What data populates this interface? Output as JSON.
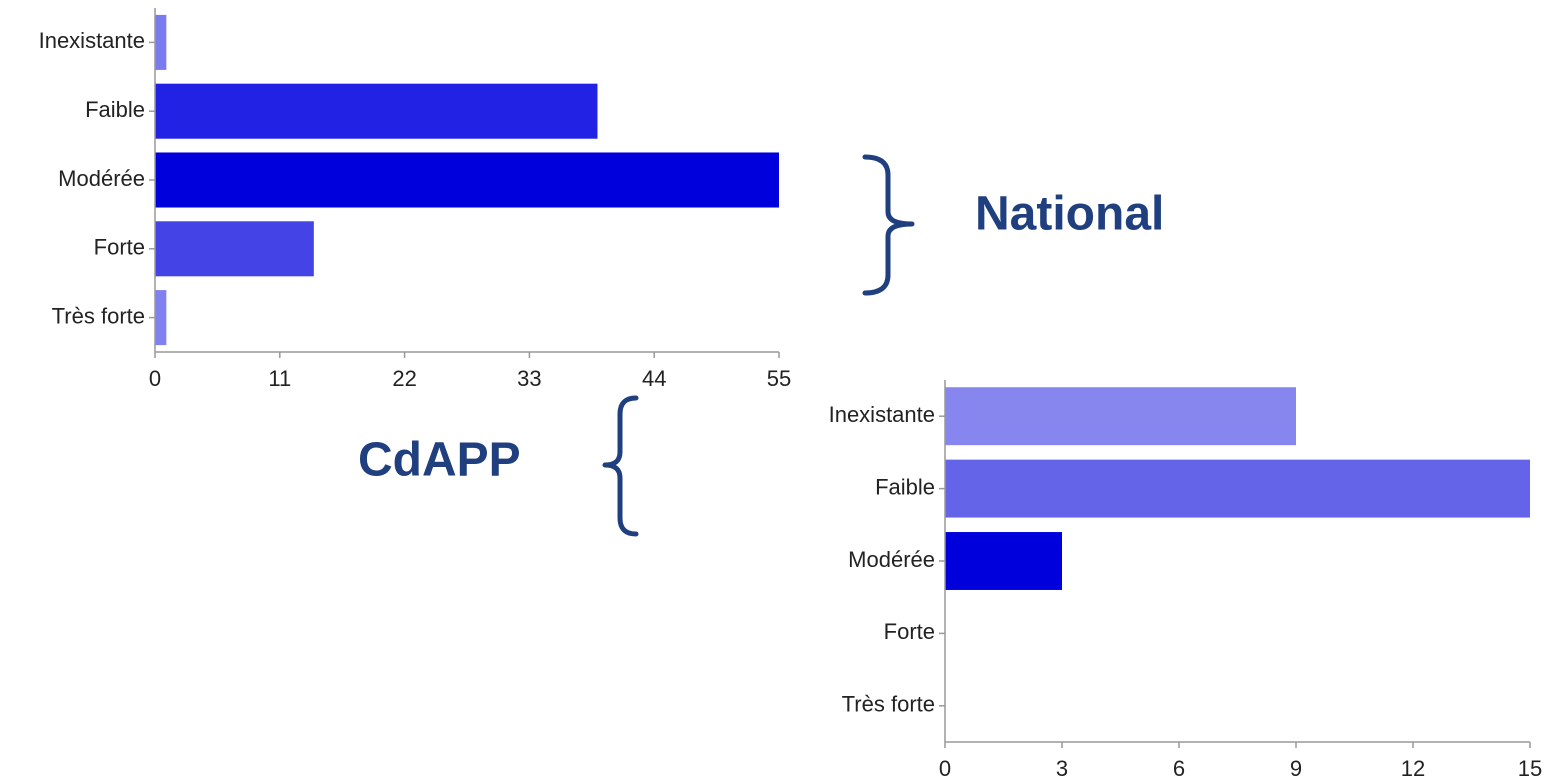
{
  "chart_data": [
    {
      "type": "bar",
      "orientation": "horizontal",
      "annotation": "National",
      "categories": [
        "Inexistante",
        "Faible",
        "Modérée",
        "Forte",
        "Très forte"
      ],
      "values": [
        1,
        39,
        55,
        14,
        1
      ],
      "colors": [
        "#7b7bf0",
        "#2222e4",
        "#0000dd",
        "#4444e6",
        "#8080f0"
      ],
      "xlim": [
        0,
        55
      ],
      "xticks": [
        0,
        11,
        22,
        33,
        44,
        55
      ]
    },
    {
      "type": "bar",
      "orientation": "horizontal",
      "annotation": "CdAPP",
      "categories": [
        "Inexistante",
        "Faible",
        "Modérée",
        "Forte",
        "Très forte"
      ],
      "values": [
        9,
        15,
        3,
        0,
        0
      ],
      "colors": [
        "#8686ee",
        "#6464e8",
        "#0000dd",
        "#4444e6",
        "#8080f0"
      ],
      "xlim": [
        0,
        15
      ],
      "xticks": [
        0,
        3,
        6,
        9,
        12,
        15
      ]
    }
  ]
}
